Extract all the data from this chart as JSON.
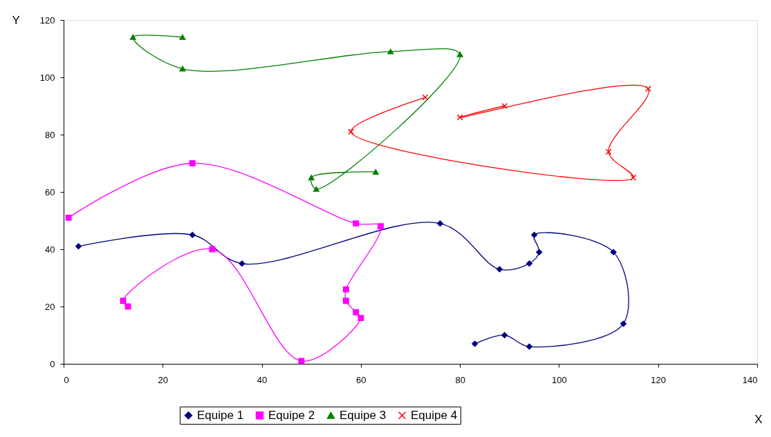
{
  "chart_data": {
    "type": "line",
    "xlabel": "X",
    "ylabel": "Y",
    "xlim": [
      0,
      140
    ],
    "xticks": [
      0,
      20,
      40,
      60,
      80,
      100,
      120,
      140
    ],
    "ylim": [
      0,
      120
    ],
    "yticks": [
      0,
      20,
      40,
      60,
      80,
      100,
      120
    ],
    "grid": false,
    "legend": "bottom",
    "series": [
      {
        "name": "Equipe 1",
        "color": "#000080",
        "marker": "diamond",
        "x": [
          3,
          26,
          36,
          76,
          88,
          94,
          96,
          95,
          111,
          113,
          94,
          89,
          83
        ],
        "values": [
          41,
          45,
          35,
          49,
          33,
          35,
          39,
          45,
          39,
          14,
          6,
          10,
          7
        ]
      },
      {
        "name": "Equipe 2",
        "color": "#ff00ff",
        "marker": "square",
        "x": [
          1,
          26,
          59,
          64,
          57,
          57,
          59,
          60,
          48,
          30,
          12,
          13
        ],
        "values": [
          51,
          70,
          49,
          48,
          26,
          22,
          18,
          16,
          1,
          40,
          22,
          20
        ]
      },
      {
        "name": "Equipe 3",
        "color": "#008000",
        "marker": "triangle",
        "x": [
          63,
          50,
          51,
          80,
          66,
          24,
          14,
          24
        ],
        "values": [
          67,
          65,
          61,
          108,
          109,
          103,
          114,
          114
        ]
      },
      {
        "name": "Equipe 4",
        "color": "#ff0000",
        "marker": "cross",
        "x": [
          73,
          58,
          115,
          110,
          118,
          80,
          89
        ],
        "values": [
          93,
          81,
          65,
          74,
          96,
          86,
          90
        ]
      }
    ]
  }
}
